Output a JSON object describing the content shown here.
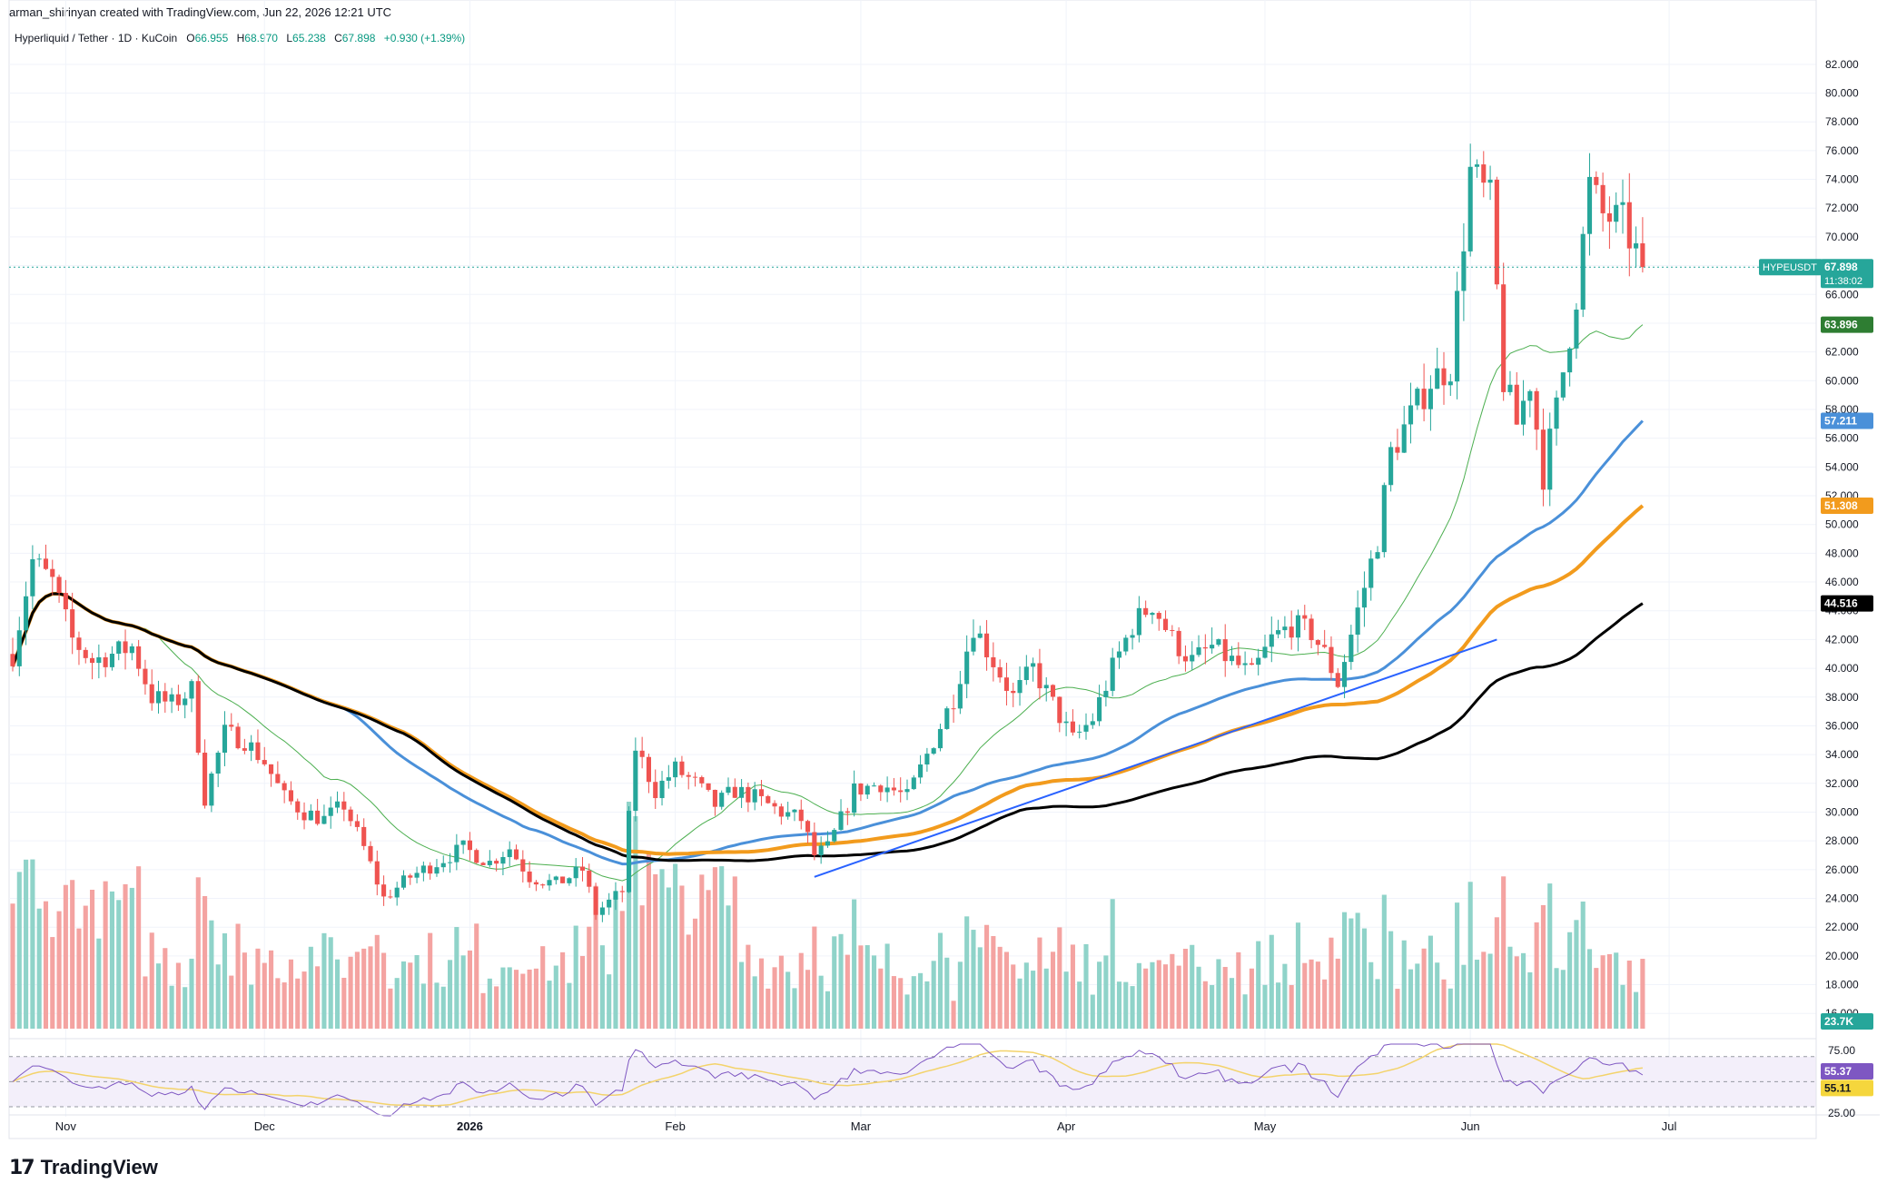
{
  "header": {
    "attribution": "arman_shirinyan created with TradingView.com, Jun 22, 2026 12:21 UTC",
    "symbol_title": "Hyperliquid / Tether · 1D · KuCoin",
    "ohlc": [
      {
        "key": "O",
        "value": "66.955"
      },
      {
        "key": "H",
        "value": "68.970"
      },
      {
        "key": "L",
        "value": "65.238"
      },
      {
        "key": "C",
        "value": "67.898"
      }
    ],
    "change": "+0.930 (+1.39%)"
  },
  "footer": {
    "logo_text": "TradingView",
    "logo_mark": "17"
  },
  "colors": {
    "up": "#26a69a",
    "down": "#ef5350",
    "vol_up": "#8fd3c9",
    "vol_down": "#f4a3a1",
    "ma20": "#4caf50",
    "ma50": "#4a90d9",
    "ma100": "#f29b1d",
    "ma200": "#000000",
    "trendline": "#2962ff",
    "rsi": "#7e57c2",
    "rsi_ma": "#f3d36b",
    "grid": "#f0f3fa"
  },
  "chart_data": {
    "type": "candlestick",
    "symbol": "HYPEUSDT",
    "interval": "1D",
    "ylim": [
      14.5,
      83
    ],
    "y_ticks": [
      "82.000",
      "80.000",
      "78.000",
      "76.000",
      "74.000",
      "72.000",
      "70.000",
      "68.000",
      "66.000",
      "64.000",
      "62.000",
      "60.000",
      "58.000",
      "56.000",
      "54.000",
      "52.000",
      "50.000",
      "48.000",
      "46.000",
      "44.000",
      "42.000",
      "40.000",
      "38.000",
      "36.000",
      "34.000",
      "32.000",
      "30.000",
      "28.000",
      "26.000",
      "24.000",
      "22.000",
      "20.000",
      "18.000",
      "16.000"
    ],
    "x_labels": [
      "Nov",
      "Dec",
      "2026",
      "Feb",
      "Mar",
      "Apr",
      "May",
      "Jun",
      "Jul"
    ],
    "x_label_days": [
      8,
      38,
      69,
      100,
      128,
      159,
      189,
      220,
      250
    ],
    "total_days": 270,
    "price_path": [
      [
        0,
        41.0
      ],
      [
        3,
        47.5
      ],
      [
        6,
        46.0
      ],
      [
        9,
        42.0
      ],
      [
        12,
        40.5
      ],
      [
        15,
        41.0
      ],
      [
        18,
        41.5
      ],
      [
        21,
        38.0
      ],
      [
        24,
        37.5
      ],
      [
        27,
        38.5
      ],
      [
        29,
        31.0
      ],
      [
        32,
        35.5
      ],
      [
        35,
        35.0
      ],
      [
        38,
        33.5
      ],
      [
        41,
        31.0
      ],
      [
        44,
        30.0
      ],
      [
        47,
        29.5
      ],
      [
        50,
        30.5
      ],
      [
        53,
        27.5
      ],
      [
        56,
        24.0
      ],
      [
        60,
        25.5
      ],
      [
        64,
        26.5
      ],
      [
        68,
        27.5
      ],
      [
        72,
        26.5
      ],
      [
        75,
        27.5
      ],
      [
        78,
        25.5
      ],
      [
        82,
        25.0
      ],
      [
        86,
        26.0
      ],
      [
        88,
        23.0
      ],
      [
        92,
        24.5
      ],
      [
        94,
        34.5
      ],
      [
        97,
        31.5
      ],
      [
        100,
        33.0
      ],
      [
        103,
        32.0
      ],
      [
        106,
        30.5
      ],
      [
        109,
        31.5
      ],
      [
        112,
        31.0
      ],
      [
        116,
        30.0
      ],
      [
        119,
        29.5
      ],
      [
        121,
        27.0
      ],
      [
        123,
        27.5
      ],
      [
        127,
        31.5
      ],
      [
        131,
        32.0
      ],
      [
        135,
        31.0
      ],
      [
        139,
        35.0
      ],
      [
        142,
        38.0
      ],
      [
        145,
        43.0
      ],
      [
        148,
        40.5
      ],
      [
        151,
        38.0
      ],
      [
        154,
        40.0
      ],
      [
        157,
        37.5
      ],
      [
        160,
        35.0
      ],
      [
        163,
        36.5
      ],
      [
        166,
        40.0
      ],
      [
        169,
        43.0
      ],
      [
        172,
        44.5
      ],
      [
        175,
        42.0
      ],
      [
        178,
        40.5
      ],
      [
        181,
        41.5
      ],
      [
        184,
        40.5
      ],
      [
        187,
        39.5
      ],
      [
        190,
        42.0
      ],
      [
        193,
        43.0
      ],
      [
        196,
        42.5
      ],
      [
        198,
        41.0
      ],
      [
        200,
        39.0
      ],
      [
        203,
        44.0
      ],
      [
        206,
        49.0
      ],
      [
        208,
        55.0
      ],
      [
        211,
        57.5
      ],
      [
        214,
        60.0
      ],
      [
        217,
        61.0
      ],
      [
        220,
        74.5
      ],
      [
        223,
        72.5
      ],
      [
        225,
        60.0
      ],
      [
        227,
        57.0
      ],
      [
        229,
        60.0
      ],
      [
        231,
        53.5
      ],
      [
        233,
        58.0
      ],
      [
        236,
        66.0
      ],
      [
        238,
        73.5
      ],
      [
        240,
        71.5
      ],
      [
        243,
        71.0
      ],
      [
        246,
        67.9
      ]
    ],
    "up_count": 125,
    "down_count": 122,
    "last_close": 67.898,
    "price_labels": [
      {
        "label": "HYPEUSDT",
        "value": "67.898",
        "sub": "11:38:02",
        "y": 67.898
      },
      {
        "label": "",
        "value": "63.896",
        "y": 63.896
      },
      {
        "label": "",
        "value": "57.211",
        "y": 57.211
      },
      {
        "label": "",
        "value": "51.308",
        "y": 51.308
      },
      {
        "label": "",
        "value": "44.516",
        "y": 44.516
      }
    ],
    "moving_averages": [
      {
        "period": 20,
        "last": 63.896
      },
      {
        "period": 50,
        "last": 57.211
      },
      {
        "period": 100,
        "last": 51.308
      },
      {
        "period": 200,
        "last": 44.516
      }
    ],
    "trendline": {
      "from": [
        121,
        25.5
      ],
      "to": [
        224,
        42.0
      ]
    },
    "volume": {
      "last_label": "23.7K"
    },
    "rsi": {
      "ticks": [
        "75.00",
        "25.00"
      ],
      "ylim": [
        22,
        80
      ],
      "bands": [
        70,
        50,
        30
      ],
      "last": "55.37",
      "ma_last": "55.11"
    }
  }
}
